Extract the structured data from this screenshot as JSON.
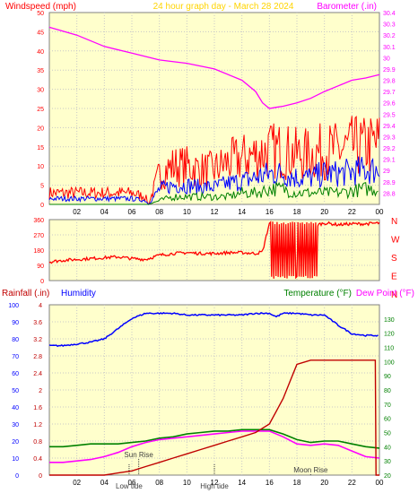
{
  "chart_data": [
    {
      "type": "line",
      "title": "24 hour graph day - March 28 2024",
      "left_axis_label": "Windspeed (mph)",
      "right_axis_label": "Barometer (.in)",
      "x_ticks": [
        "02",
        "04",
        "06",
        "08",
        "10",
        "12",
        "14",
        "16",
        "18",
        "20",
        "22",
        "00"
      ],
      "left_ylim": [
        0,
        50
      ],
      "left_ticks": [
        "0",
        "5",
        "10",
        "15",
        "20",
        "25",
        "30",
        "35",
        "40",
        "45",
        "50"
      ],
      "right_ylim": [
        28.7,
        30.4
      ],
      "right_ticks": [
        "28.8",
        "28.9",
        "29",
        "29.1",
        "29.2",
        "29.3",
        "29.4",
        "29.5",
        "29.6",
        "29.7",
        "29.8",
        "29.9",
        "30",
        "30.1",
        "30.2",
        "30.3",
        "30.4"
      ],
      "series": [
        {
          "color": "#ff0000",
          "axis": "left",
          "x": [
            0,
            1,
            2,
            3,
            4,
            5,
            6,
            7,
            7.2,
            8,
            9,
            10,
            11,
            12,
            13,
            14,
            15,
            16,
            17,
            18,
            19,
            20,
            21,
            22,
            23,
            24
          ],
          "values": [
            3,
            3,
            3,
            3,
            3,
            3,
            3,
            2,
            0,
            8,
            10,
            10,
            9,
            9,
            11,
            12,
            13,
            14,
            14,
            13,
            13,
            14,
            14,
            15,
            15,
            16
          ]
        },
        {
          "color": "#0000ff",
          "axis": "left",
          "x": [
            0,
            1,
            2,
            3,
            4,
            5,
            6,
            7,
            7.2,
            8,
            9,
            10,
            11,
            12,
            13,
            14,
            15,
            16,
            17,
            18,
            19,
            20,
            21,
            22,
            23,
            24
          ],
          "values": [
            1.5,
            1.5,
            1.5,
            1.5,
            1.5,
            1.5,
            1.5,
            1,
            0,
            4,
            5,
            5,
            4.5,
            4.5,
            5.5,
            6,
            7,
            8,
            8,
            7,
            7,
            8,
            8,
            8.5,
            9,
            9
          ]
        },
        {
          "color": "#008000",
          "axis": "left",
          "x": [
            0,
            7.2,
            8,
            9,
            10,
            11,
            12,
            13,
            14,
            15,
            16,
            17,
            18,
            19,
            20,
            21,
            22,
            23,
            24
          ],
          "values": [
            0,
            0,
            1,
            2,
            2,
            2,
            2,
            2,
            3,
            3,
            4,
            4,
            3,
            3,
            3,
            3,
            3.5,
            4,
            4
          ]
        },
        {
          "color": "#ff00ff",
          "axis": "right",
          "x": [
            0,
            2,
            4,
            6,
            8,
            10,
            12,
            14,
            15,
            15.5,
            16,
            16.5,
            17,
            18,
            19,
            20,
            21,
            22,
            23,
            24
          ],
          "values": [
            30.27,
            30.2,
            30.1,
            30.04,
            29.98,
            29.95,
            29.9,
            29.8,
            29.7,
            29.6,
            29.55,
            29.56,
            29.57,
            29.6,
            29.64,
            29.7,
            29.75,
            29.8,
            29.82,
            29.85
          ]
        }
      ]
    },
    {
      "type": "line",
      "title": "",
      "left_axis_label": "",
      "right_axis_label": "",
      "direction_letters": [
        "N",
        "W",
        "S",
        "E",
        "N"
      ],
      "x_ticks": [],
      "ylim": [
        0,
        360
      ],
      "y_ticks": [
        "0",
        "90",
        "180",
        "270",
        "360"
      ],
      "series": [
        {
          "color": "#ff0000",
          "x": [
            0,
            1,
            2,
            3,
            4,
            5,
            6,
            7,
            7.2,
            8,
            9,
            10,
            11,
            12,
            13,
            14,
            15,
            15.5,
            16,
            16.2,
            16.5,
            17,
            17.5,
            18,
            18.5,
            19,
            19.5,
            20,
            21,
            22,
            23,
            24
          ],
          "values": [
            110,
            120,
            125,
            130,
            135,
            140,
            130,
            125,
            130,
            150,
            160,
            165,
            160,
            160,
            165,
            165,
            160,
            170,
            340,
            20,
            330,
            20,
            340,
            30,
            340,
            20,
            330,
            340,
            330,
            335,
            335,
            340
          ]
        }
      ]
    },
    {
      "type": "line",
      "title": "",
      "left_axis_label": "Rainfall (.in)",
      "left_axis_label_2": "Humidity",
      "right_axis_label": "Temperature (°F)",
      "right_axis_label_2": "Dew Point (°F)",
      "x_ticks": [
        "02",
        "04",
        "06",
        "08",
        "10",
        "12",
        "14",
        "16",
        "18",
        "20",
        "22",
        "00"
      ],
      "left_ylim": [
        0,
        4
      ],
      "left_ticks": [
        "0",
        "0.4",
        "0.8",
        "1.2",
        "1.6",
        "2",
        "2.4",
        "2.8",
        "3.2",
        "3.6",
        "4"
      ],
      "humidity_ylim": [
        0,
        100
      ],
      "humidity_ticks": [
        "0",
        "10",
        "20",
        "30",
        "40",
        "50",
        "60",
        "70",
        "80",
        "90",
        "100"
      ],
      "right_ylim": [
        20,
        140
      ],
      "right_ticks": [
        "20",
        "30",
        "40",
        "50",
        "60",
        "70",
        "80",
        "90",
        "100",
        "110",
        "120",
        "130"
      ],
      "annotations": [
        "Sun Rise",
        "Moon Rise",
        "Low tide",
        "High tide"
      ],
      "series": [
        {
          "name": "Rainfall",
          "color": "#c00000",
          "axis": "left",
          "x": [
            0,
            2,
            4,
            5,
            6,
            7,
            8,
            9,
            10,
            11,
            12,
            13,
            14,
            15,
            16,
            16.5,
            17,
            17.5,
            18,
            19,
            20,
            21,
            22,
            23,
            23.7,
            23.75,
            24
          ],
          "values": [
            0,
            0,
            0,
            0.05,
            0.1,
            0.2,
            0.3,
            0.4,
            0.5,
            0.6,
            0.7,
            0.8,
            0.9,
            1.0,
            1.2,
            1.5,
            1.8,
            2.2,
            2.6,
            2.7,
            2.7,
            2.7,
            2.7,
            2.7,
            2.7,
            0,
            0
          ]
        },
        {
          "name": "Humidity",
          "color": "#0000ff",
          "axis": "humidity",
          "x": [
            0,
            1,
            2,
            3,
            4,
            5,
            6,
            7,
            8,
            9,
            10,
            11,
            12,
            13,
            14,
            15,
            16,
            16.5,
            17,
            18,
            19,
            20,
            21,
            22,
            23,
            24
          ],
          "values": [
            76,
            76,
            77,
            78,
            80,
            86,
            92,
            95,
            95,
            95,
            94,
            94,
            94,
            94,
            94,
            95,
            95,
            93,
            95,
            95,
            94,
            94,
            88,
            83,
            82,
            82
          ]
        },
        {
          "name": "Temperature",
          "color": "#008000",
          "axis": "right",
          "x": [
            0,
            1,
            2,
            3,
            4,
            5,
            6,
            7,
            8,
            9,
            10,
            11,
            12,
            13,
            14,
            15,
            16,
            17,
            18,
            19,
            20,
            21,
            22,
            23,
            24
          ],
          "values": [
            40,
            40,
            41,
            42,
            42,
            42,
            43,
            44,
            46,
            47,
            49,
            50,
            51,
            51,
            52,
            52,
            52,
            49,
            45,
            43,
            44,
            44,
            42,
            40,
            39
          ]
        },
        {
          "name": "Dew Point",
          "color": "#ff00ff",
          "axis": "right",
          "x": [
            0,
            1,
            2,
            3,
            4,
            5,
            6,
            7,
            8,
            9,
            10,
            11,
            12,
            13,
            14,
            15,
            16,
            17,
            18,
            19,
            20,
            21,
            22,
            23,
            24
          ],
          "values": [
            29,
            29,
            30,
            31,
            33,
            36,
            40,
            43,
            45,
            46,
            47,
            48,
            49,
            50,
            51,
            51,
            51,
            47,
            42,
            41,
            42,
            41,
            37,
            33,
            32
          ]
        }
      ]
    }
  ]
}
